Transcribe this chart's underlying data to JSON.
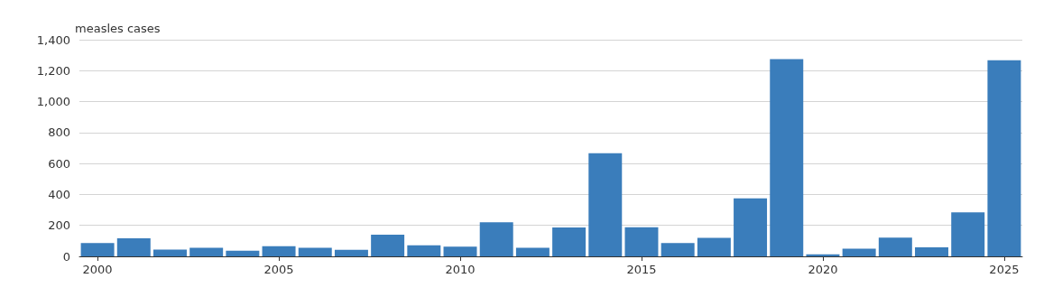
{
  "chart_data": {
    "type": "bar",
    "ylabel": "measles cases",
    "categories": [
      "2000",
      null,
      null,
      null,
      null,
      "2005",
      null,
      null,
      null,
      null,
      "2010",
      null,
      null,
      null,
      null,
      "2015",
      null,
      null,
      null,
      null,
      "2020",
      null,
      null,
      null,
      null,
      "2025"
    ],
    "values": [
      86,
      116,
      44,
      56,
      37,
      66,
      55,
      43,
      140,
      71,
      63,
      220,
      55,
      187,
      667,
      188,
      86,
      120,
      375,
      1274,
      13,
      49,
      121,
      59,
      285,
      1267
    ],
    "color": "#3a7dbb",
    "ylim": [
      0,
      1400
    ],
    "yticks": [
      0,
      {
        "value": 200,
        "label": "200"
      },
      {
        "value": 400,
        "label": "400"
      },
      {
        "value": 600,
        "label": "600"
      },
      {
        "value": 800,
        "label": "800"
      },
      {
        "value": 1000,
        "label": "1,000"
      },
      {
        "value": 1200,
        "label": "1,200"
      },
      {
        "value": 1400,
        "label": "1,400"
      }
    ],
    "grid": "y"
  }
}
